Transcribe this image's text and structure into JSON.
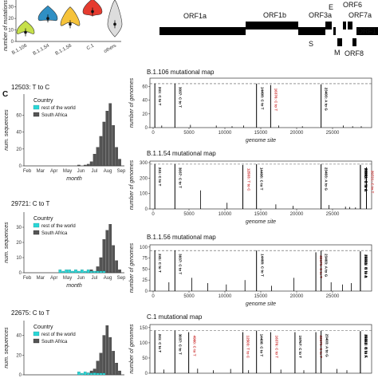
{
  "panel_c_label": "C",
  "colors": {
    "south_africa": "#555555",
    "rest_of_world": "#2ad6d6",
    "mutation_black": "#000000",
    "mutation_red": "#cc3333",
    "violin_b1106": "#c6e04a",
    "violin_b1154": "#2f8fc4",
    "violin_b1156": "#f6c33a",
    "violin_c1": "#e53b2f",
    "violin_others": "#dddddd"
  },
  "violin": {
    "ylabel": "number of mutations",
    "yticks": [
      "0",
      "10",
      "20",
      "30"
    ],
    "categories": [
      "B.1.106",
      "B.1.1.54",
      "B.1.1.56",
      "C.1",
      "others"
    ]
  },
  "genome": {
    "orfs": [
      {
        "name": "ORF1a"
      },
      {
        "name": "ORF1b"
      },
      {
        "name": "S"
      },
      {
        "name": "ORF3a"
      },
      {
        "name": "E"
      },
      {
        "name": "M"
      },
      {
        "name": "ORF6"
      },
      {
        "name": "ORF7a"
      },
      {
        "name": "ORF8"
      },
      {
        "name": "ORF1"
      }
    ]
  },
  "chart_data": [
    {
      "type": "bar",
      "title": "12503: T to C",
      "legend_title": "Country",
      "series": [
        {
          "name": "rest of the world",
          "values": [
            0,
            0,
            0,
            0,
            0,
            0,
            0,
            0,
            0,
            0,
            0,
            0,
            0,
            0,
            0,
            0,
            0,
            0,
            0,
            0,
            0,
            0,
            0,
            0,
            0,
            0,
            0,
            0,
            0,
            0
          ]
        },
        {
          "name": "South Africa",
          "values": [
            0,
            0,
            0,
            0,
            0,
            0,
            0,
            0,
            0,
            0,
            0,
            0,
            0,
            0,
            0,
            0,
            1,
            0,
            1,
            2,
            5,
            14,
            22,
            35,
            52,
            65,
            74,
            48,
            22,
            8
          ]
        }
      ],
      "xticks": [
        "Feb",
        "Mar",
        "Apr",
        "May",
        "Jun",
        "Jul",
        "Aug",
        "Sep"
      ],
      "yticks": [
        "0",
        "20",
        "40",
        "60"
      ],
      "ylim": [
        0,
        85
      ],
      "xlabel": "month",
      "ylabel": "num. sequences"
    },
    {
      "type": "bar",
      "title": "29721: C to T",
      "legend_title": "Country",
      "series": [
        {
          "name": "rest of the world",
          "values": [
            0,
            0,
            0,
            0,
            0,
            0,
            0,
            0,
            0,
            0,
            2,
            1,
            2,
            2,
            1,
            2,
            1,
            2,
            1,
            2,
            1,
            1,
            1,
            1,
            1,
            0,
            0,
            0,
            0,
            0
          ]
        },
        {
          "name": "South Africa",
          "values": [
            0,
            0,
            0,
            0,
            0,
            0,
            0,
            0,
            0,
            0,
            0,
            0,
            0,
            0,
            0,
            0,
            0,
            0,
            0,
            1,
            2,
            1,
            4,
            10,
            22,
            28,
            32,
            18,
            8,
            2
          ]
        }
      ],
      "xticks": [
        "Feb",
        "Mar",
        "Apr",
        "May",
        "Jun",
        "Jul",
        "Aug",
        "Sep"
      ],
      "yticks": [
        "0",
        "10",
        "20",
        "30"
      ],
      "ylim": [
        0,
        40
      ],
      "xlabel": "month",
      "ylabel": "num. sequences"
    },
    {
      "type": "bar",
      "title": "22675: C to T",
      "legend_title": "Country",
      "series": [
        {
          "name": "rest of the world",
          "values": [
            0,
            0,
            0,
            0,
            0,
            0,
            0,
            0,
            0,
            0,
            0,
            0,
            0,
            0,
            0,
            0,
            3,
            1,
            3,
            2,
            1,
            2,
            1,
            1,
            1,
            0,
            0,
            0,
            0,
            0
          ]
        },
        {
          "name": "South Africa",
          "values": [
            0,
            0,
            0,
            0,
            0,
            0,
            0,
            0,
            0,
            0,
            0,
            0,
            0,
            0,
            0,
            0,
            0,
            0,
            1,
            2,
            4,
            6,
            14,
            22,
            40,
            50,
            38,
            24,
            12,
            4
          ]
        }
      ],
      "xticks": [],
      "yticks": [
        "0",
        "20",
        "40"
      ],
      "ylim": [
        0,
        55
      ],
      "xlabel": "",
      "ylabel": "num. sequences"
    },
    {
      "type": "bar",
      "title": "B.1.106 mutational map",
      "ylabel": "number of genomes",
      "xlabel": "genome site",
      "xticks": [
        "0",
        "5000",
        "10000",
        "15000",
        "20000",
        "25000"
      ],
      "yticks": [
        "0",
        "20",
        "40",
        "60"
      ],
      "ylim": [
        0,
        72
      ],
      "xlim": [
        0,
        30000
      ],
      "threshold": 64,
      "annotated": [
        {
          "pos": 241,
          "value": 64,
          "label": "241: C to T",
          "color": "black"
        },
        {
          "pos": 3037,
          "value": 64,
          "label": "3037: C to T",
          "color": "black"
        },
        {
          "pos": 14408,
          "value": 64,
          "label": "14408: C to T",
          "color": "black"
        },
        {
          "pos": 16376,
          "value": 62,
          "label": "16376: C to T",
          "color": "red"
        },
        {
          "pos": 23403,
          "value": 63,
          "label": "23403: A to G",
          "color": "black"
        }
      ],
      "background": [
        [
          1200,
          3
        ],
        [
          5200,
          4
        ],
        [
          8800,
          3
        ],
        [
          11000,
          2
        ],
        [
          12600,
          3
        ],
        [
          17500,
          3
        ],
        [
          20800,
          2
        ],
        [
          26500,
          3
        ],
        [
          27800,
          2
        ],
        [
          29000,
          2
        ]
      ]
    },
    {
      "type": "bar",
      "title": "B.1.1.54 mutational map",
      "ylabel": "number of genomes",
      "xlabel": "genome site",
      "xticks": [
        "0",
        "5000",
        "10000",
        "15000",
        "20000",
        "25000"
      ],
      "yticks": [
        "0",
        "100",
        "200",
        "300"
      ],
      "ylim": [
        0,
        310
      ],
      "xlim": [
        0,
        30000
      ],
      "threshold": 290,
      "annotated": [
        {
          "pos": 241,
          "value": 290,
          "label": "241: C to T",
          "color": "black"
        },
        {
          "pos": 3037,
          "value": 290,
          "label": "3037: C to T",
          "color": "black"
        },
        {
          "pos": 12503,
          "value": 285,
          "label": "12503: T to C",
          "color": "red"
        },
        {
          "pos": 14408,
          "value": 290,
          "label": "14408: C to T",
          "color": "black"
        },
        {
          "pos": 23403,
          "value": 290,
          "label": "23403: A to G",
          "color": "black"
        },
        {
          "pos": 28881,
          "value": 285,
          "label": "28881: G to A",
          "color": "black"
        },
        {
          "pos": 28882,
          "value": 285,
          "label": "28882: G to A",
          "color": "black"
        },
        {
          "pos": 28883,
          "value": 285,
          "label": "28883: G to C",
          "color": "black"
        },
        {
          "pos": 29721,
          "value": 270,
          "label": "29721: C to T",
          "color": "red"
        }
      ],
      "background": [
        [
          6600,
          120
        ],
        [
          10300,
          40
        ],
        [
          17100,
          30
        ],
        [
          19500,
          20
        ],
        [
          24500,
          25
        ],
        [
          26800,
          15
        ],
        [
          27400,
          12
        ],
        [
          28200,
          10
        ]
      ]
    },
    {
      "type": "bar",
      "title": "B.1.1.56 mutational map",
      "ylabel": "number of genomes",
      "xlabel": "genome site",
      "xticks": [
        "0",
        "5000",
        "10000",
        "15000",
        "20000",
        "25000"
      ],
      "yticks": [
        "0",
        "25",
        "50",
        "75",
        "100"
      ],
      "ylim": [
        0,
        105
      ],
      "xlim": [
        0,
        30000
      ],
      "threshold": 92,
      "annotated": [
        {
          "pos": 241,
          "value": 92,
          "label": "241: C to T",
          "color": "black"
        },
        {
          "pos": 3037,
          "value": 92,
          "label": "3037: C to T",
          "color": "black"
        },
        {
          "pos": 14408,
          "value": 92,
          "label": "14408: C to T",
          "color": "black"
        },
        {
          "pos": 22675,
          "value": 88,
          "label": "22675: C to T",
          "color": "red"
        },
        {
          "pos": 23403,
          "value": 92,
          "label": "23403: A to G",
          "color": "black"
        },
        {
          "pos": 28881,
          "value": 90,
          "label": "28881: G to A",
          "color": "black"
        },
        {
          "pos": 28882,
          "value": 90,
          "label": "28882: G to A",
          "color": "black"
        },
        {
          "pos": 28883,
          "value": 90,
          "label": "28883: G to C",
          "color": "black"
        }
      ],
      "background": [
        [
          2200,
          20
        ],
        [
          5400,
          30
        ],
        [
          7600,
          18
        ],
        [
          10200,
          15
        ],
        [
          12800,
          25
        ],
        [
          16500,
          12
        ],
        [
          19600,
          30
        ],
        [
          24800,
          20
        ],
        [
          26400,
          15
        ],
        [
          27600,
          18
        ]
      ]
    },
    {
      "type": "bar",
      "title": "C.1 mutational map",
      "ylabel": "number of genomes",
      "xlabel": "",
      "xticks": [],
      "yticks": [
        "0",
        "50",
        "100",
        "150"
      ],
      "ylim": [
        0,
        160
      ],
      "xlim": [
        0,
        30000
      ],
      "threshold": 140,
      "annotated": [
        {
          "pos": 241,
          "value": 140,
          "label": "241: C to T",
          "color": "black"
        },
        {
          "pos": 3037,
          "value": 140,
          "label": "3037: C to T",
          "color": "black"
        },
        {
          "pos": 4960,
          "value": 135,
          "label": "4960: C to T",
          "color": "red"
        },
        {
          "pos": 12503,
          "value": 135,
          "label": "12503: T to C",
          "color": "red"
        },
        {
          "pos": 14408,
          "value": 140,
          "label": "14408: C to T",
          "color": "black"
        },
        {
          "pos": 16376,
          "value": 135,
          "label": "16376: C to T",
          "color": "red"
        },
        {
          "pos": 19767,
          "value": 135,
          "label": "19767: C to T",
          "color": "black"
        },
        {
          "pos": 22675,
          "value": 135,
          "label": "22675: C to T",
          "color": "red"
        },
        {
          "pos": 23403,
          "value": 140,
          "label": "23403: A to G",
          "color": "black"
        },
        {
          "pos": 28881,
          "value": 138,
          "label": "28881: G to A",
          "color": "black"
        },
        {
          "pos": 28882,
          "value": 138,
          "label": "28882: G to A",
          "color": "black"
        },
        {
          "pos": 28883,
          "value": 138,
          "label": "28883: G to C",
          "color": "black"
        }
      ],
      "background": [
        [
          1500,
          12
        ],
        [
          6200,
          15
        ],
        [
          8400,
          10
        ],
        [
          10800,
          14
        ],
        [
          13300,
          10
        ],
        [
          17800,
          12
        ],
        [
          21000,
          10
        ],
        [
          25600,
          14
        ],
        [
          27000,
          10
        ]
      ]
    }
  ]
}
